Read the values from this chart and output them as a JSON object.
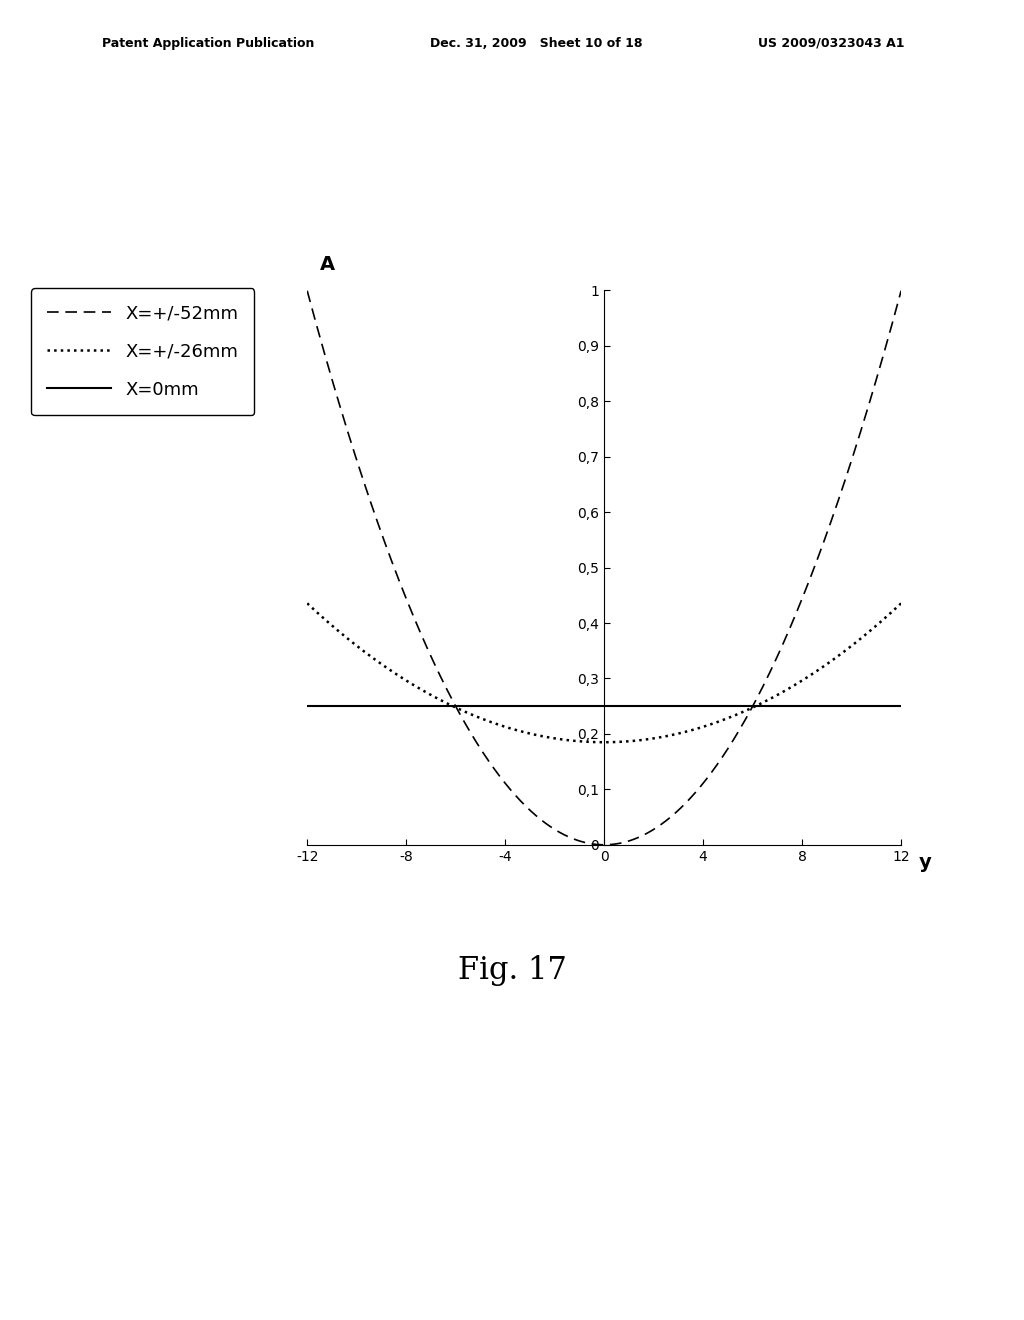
{
  "title": "",
  "xlabel": "y",
  "ylabel": "A",
  "xlim": [
    -12,
    12
  ],
  "ylim": [
    0,
    1
  ],
  "xticks": [
    -12,
    -8,
    -4,
    0,
    4,
    8,
    12
  ],
  "yticks": [
    0,
    0.1,
    0.2,
    0.3,
    0.4,
    0.5,
    0.6,
    0.7,
    0.8,
    0.9,
    1
  ],
  "ytick_labels": [
    "0",
    "0,1",
    "0,2",
    "0,3",
    "0,4",
    "0,5",
    "0,6",
    "0,7",
    "0,8",
    "0,9",
    "1"
  ],
  "xtick_labels": [
    "-12",
    "-8",
    "-4",
    "0",
    "4",
    "8",
    "12"
  ],
  "legend_labels": [
    "X=+/-52mm",
    "X=+/-26mm",
    "X=0mm"
  ],
  "solid_level": 0.25,
  "dotted_a": 0.185,
  "dotted_k": 0.00174,
  "dashed_a": 0.0,
  "dashed_k": 0.00694,
  "background_color": "#ffffff",
  "fig_width": 10.24,
  "fig_height": 13.2,
  "dpi": 100
}
